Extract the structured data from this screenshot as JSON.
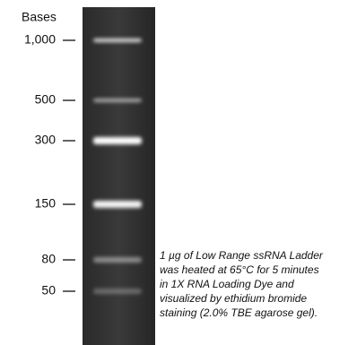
{
  "axis_label": "Bases",
  "markers": [
    "1,000",
    "500",
    "300",
    "150",
    "80",
    "50"
  ],
  "caption": [
    "1 µg of Low Range ssRNA Ladder",
    "was heated at 65°C for 5 minutes",
    "in 1X RNA Loading Dye and",
    "visualized by ethidium bromide",
    "staining (2.0% TBE agarose gel)."
  ]
}
